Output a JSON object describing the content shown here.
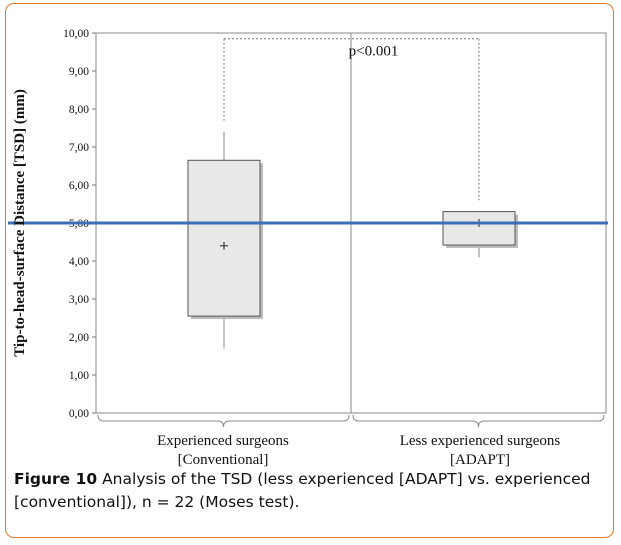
{
  "chart_data": {
    "type": "box",
    "ylabel": "Tip-to-head-surface Distance [TSD] (mm)",
    "ylim": [
      0,
      10
    ],
    "yticks": [
      "0,00",
      "1,00",
      "2,00",
      "3,00",
      "4,00",
      "5,00",
      "6,00",
      "7,00",
      "8,00",
      "9,00",
      "10,00"
    ],
    "categories": [
      [
        "Experienced surgeons",
        "[Conventional]"
      ],
      [
        "Less experienced surgeons",
        "[ADAPT]"
      ]
    ],
    "boxes": [
      {
        "name": "Experienced surgeons [Conventional]",
        "min": 1.7,
        "q1": 2.55,
        "mean": 4.4,
        "q3": 6.65,
        "max": 7.4,
        "dotted_top": 7.65
      },
      {
        "name": "Less experienced surgeons [ADAPT]",
        "min": 4.1,
        "q1": 4.42,
        "mean": 5.0,
        "q3": 5.3,
        "max": 5.3,
        "dotted_top": 5.6
      }
    ],
    "reference_line": {
      "value": 5.0,
      "color": "#3d6fb8"
    },
    "bracket_top": 9.85,
    "annotation": "p<0.001",
    "box_fill": "#e8e8e8",
    "grid": false
  },
  "caption": {
    "label": "Figure 10",
    "text": " Analysis of the TSD (less experienced [ADAPT] vs. experienced [conventional]), n = 22 (Moses test)."
  }
}
